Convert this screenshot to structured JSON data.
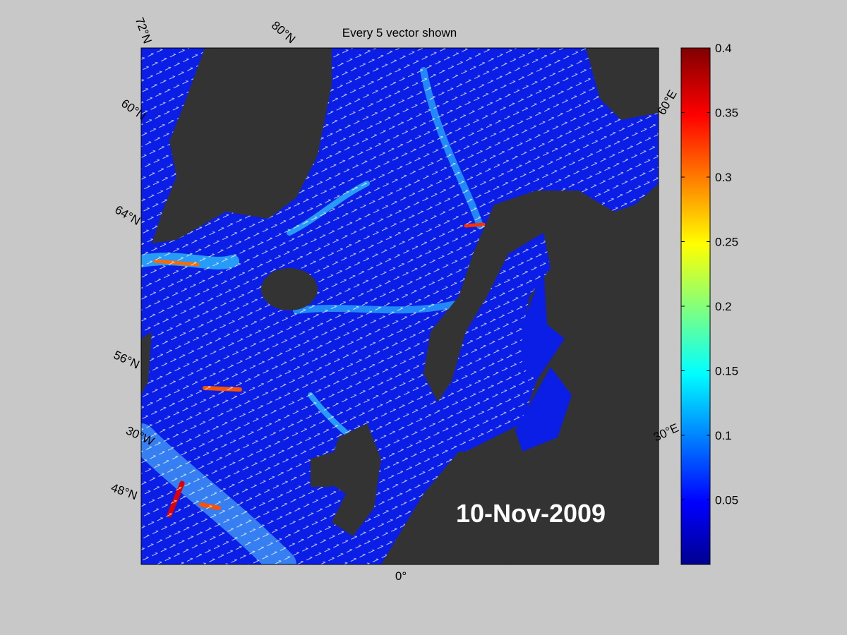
{
  "title": "Every 5 vector shown",
  "date": "10-Nov-2009",
  "lat_labels": [
    "72°N",
    "80°N",
    "60°N",
    "64°N",
    "56°N",
    "48°N"
  ],
  "lon_labels": [
    "30°W",
    "0°",
    "30°E",
    "60°E"
  ],
  "colorbar": {
    "lim": [
      0,
      0.4
    ],
    "ticks": [
      0.05,
      0.1,
      0.15,
      0.2,
      0.25,
      0.3,
      0.35,
      0.4
    ]
  }
}
